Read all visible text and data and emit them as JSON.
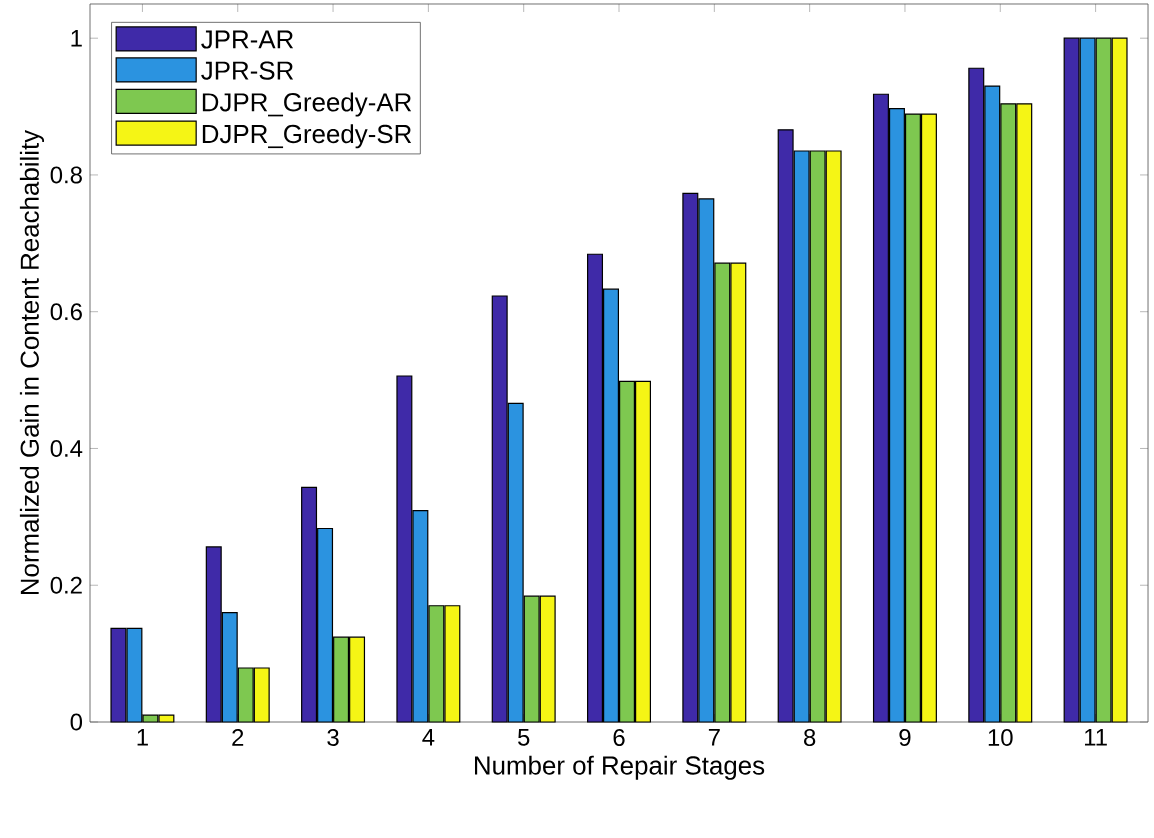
{
  "chart_data": {
    "type": "bar",
    "xlabel": "Number of Repair Stages",
    "ylabel": "Normalized Gain in Content Reachability",
    "categories": [
      "1",
      "2",
      "3",
      "4",
      "5",
      "6",
      "7",
      "8",
      "9",
      "10",
      "11"
    ],
    "series": [
      {
        "name": "JPR-AR",
        "color": "#3f2aa8",
        "values": [
          0.137,
          0.256,
          0.343,
          0.506,
          0.623,
          0.684,
          0.773,
          0.866,
          0.918,
          0.956,
          1
        ]
      },
      {
        "name": "JPR-SR",
        "color": "#2b93e0",
        "values": [
          0.137,
          0.16,
          0.283,
          0.309,
          0.466,
          0.633,
          0.765,
          0.835,
          0.897,
          0.93,
          1
        ]
      },
      {
        "name": "DJPR_Greedy-AR",
        "color": "#7ec850",
        "values": [
          0.01,
          0.079,
          0.124,
          0.17,
          0.184,
          0.498,
          0.671,
          0.835,
          0.889,
          0.904,
          1
        ]
      },
      {
        "name": "DJPR_Greedy-SR",
        "color": "#f5f515",
        "values": [
          0.01,
          0.079,
          0.124,
          0.17,
          0.184,
          0.498,
          0.671,
          0.835,
          0.889,
          0.904,
          1
        ]
      }
    ],
    "ylim": [
      0,
      1.05
    ],
    "yticks": [
      0,
      0.2,
      0.4,
      0.6,
      0.8,
      1
    ],
    "legend": "top left"
  }
}
